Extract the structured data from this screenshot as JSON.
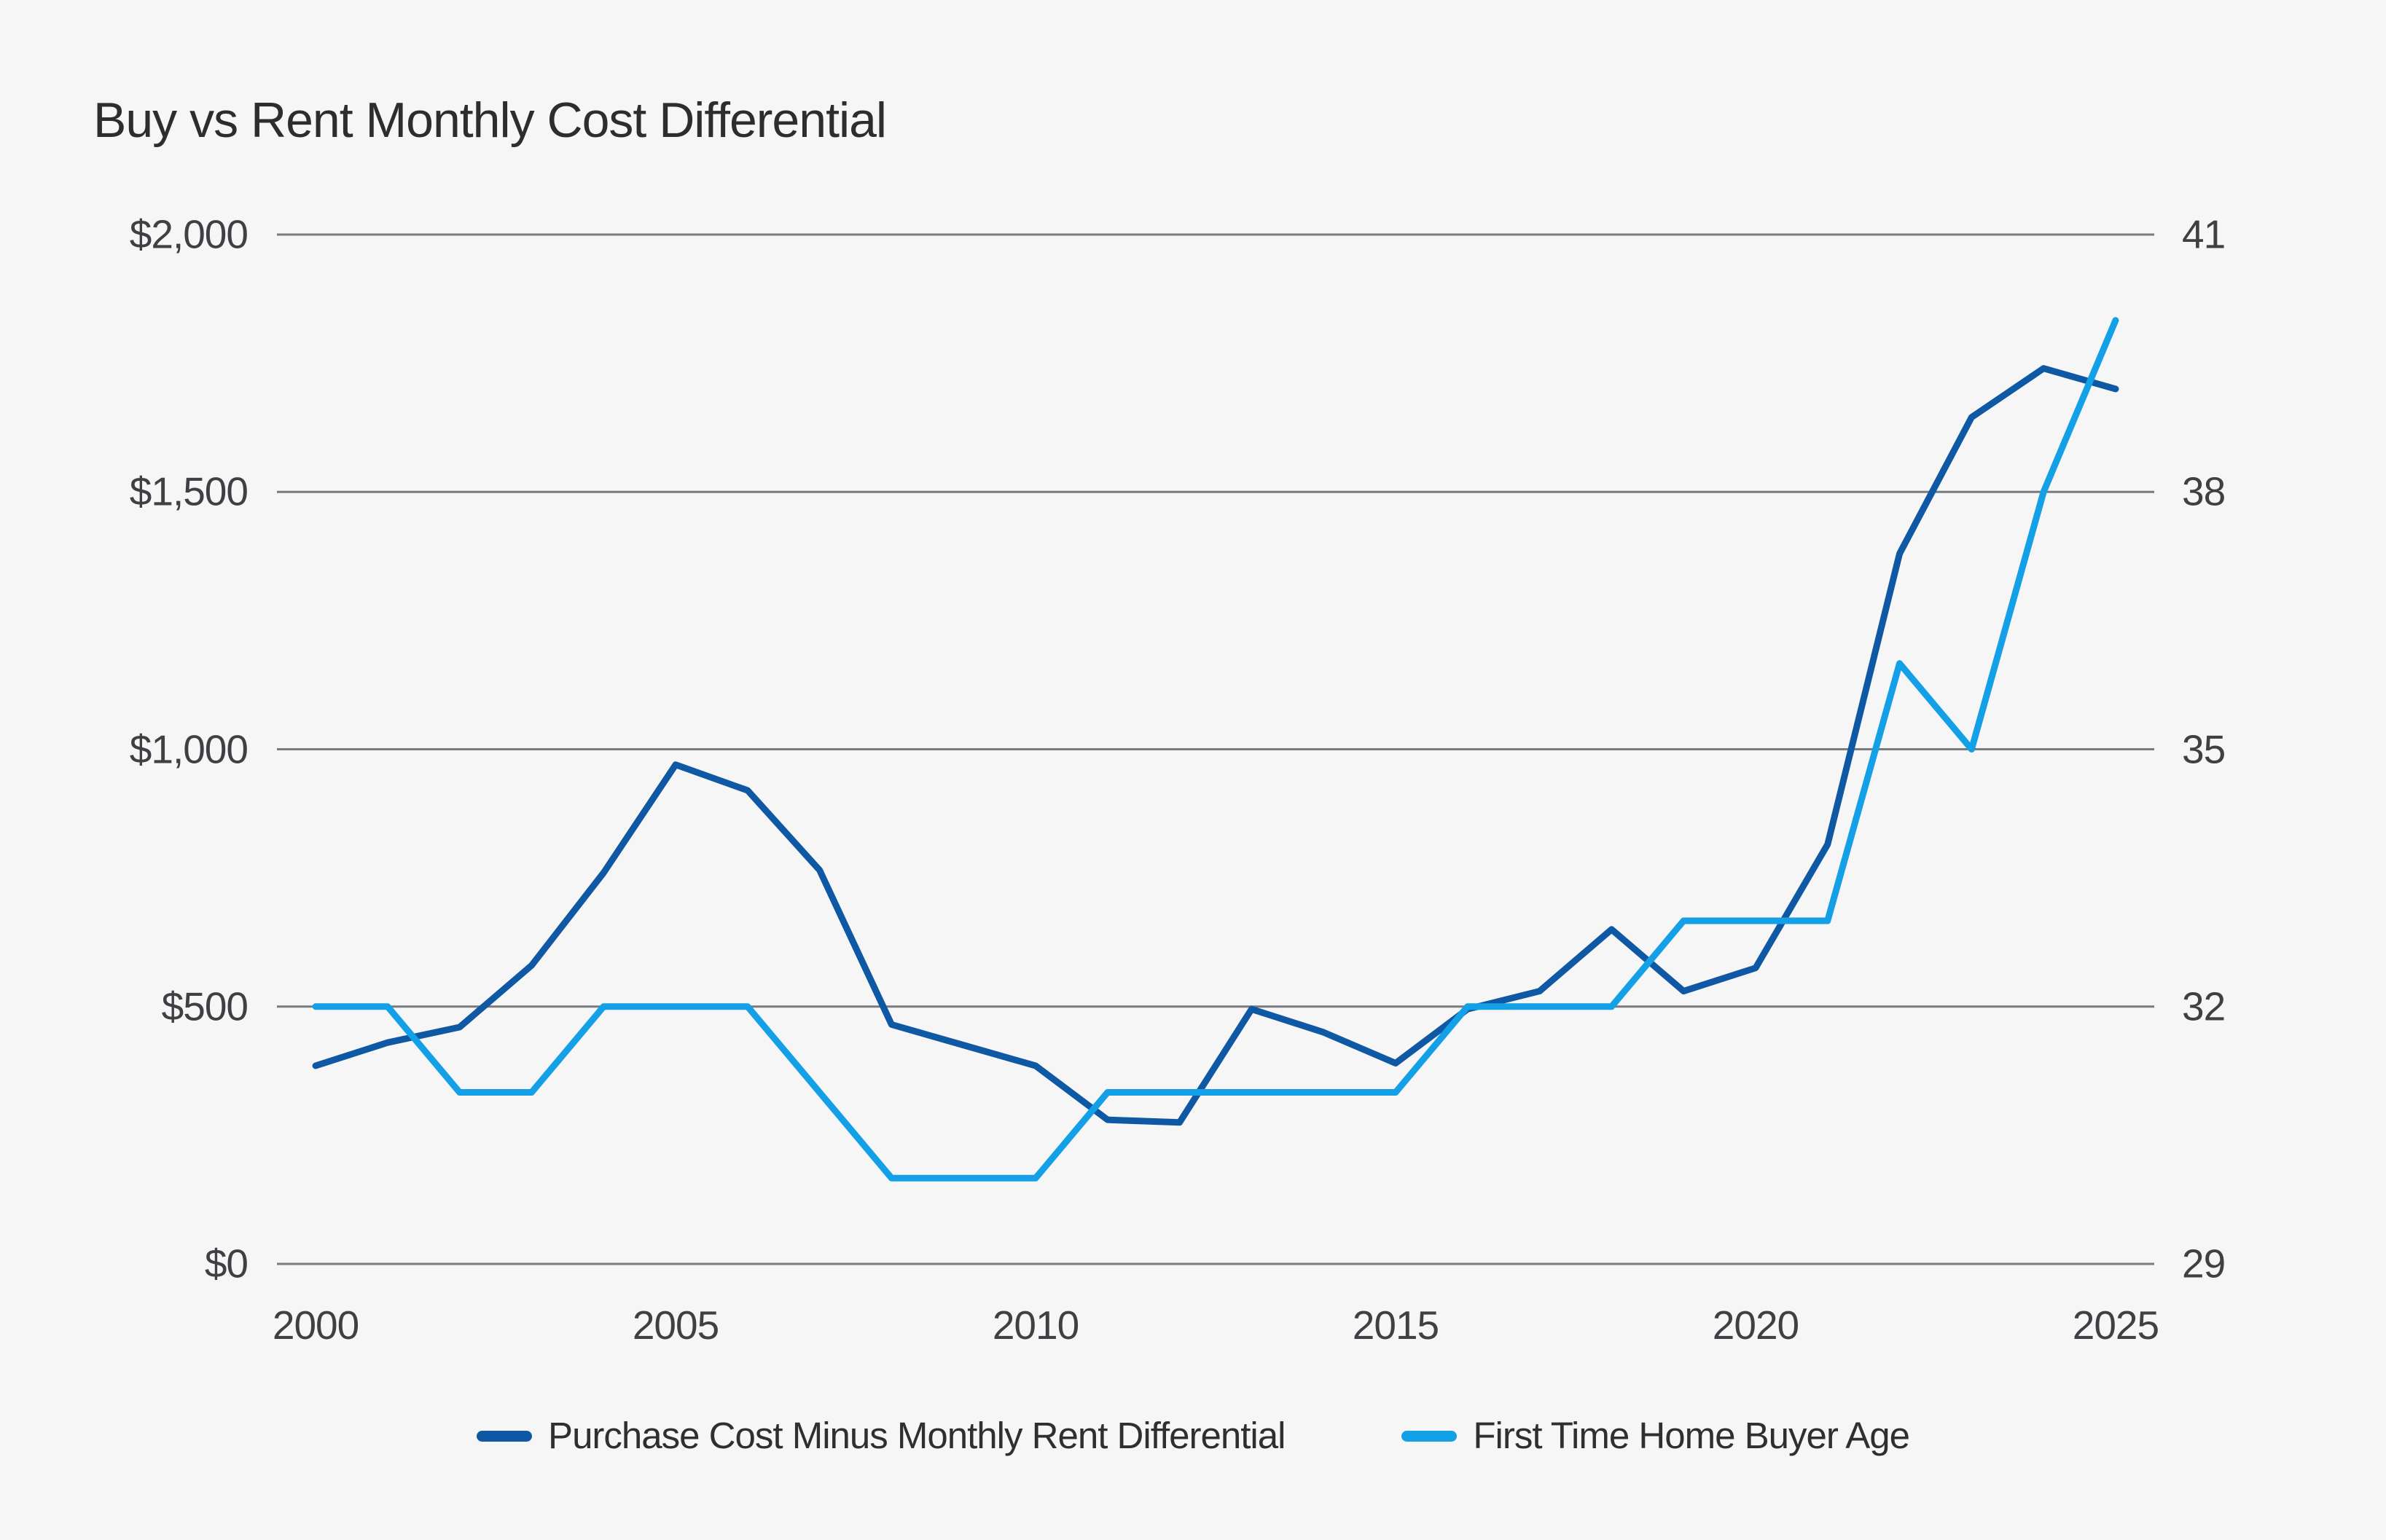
{
  "page": {
    "background": "#f6f6f7"
  },
  "chart_data": {
    "type": "line",
    "title": "Buy vs Rent Monthly Cost Differential",
    "x": [
      2000,
      2001,
      2002,
      2003,
      2004,
      2005,
      2006,
      2007,
      2008,
      2009,
      2010,
      2011,
      2012,
      2013,
      2014,
      2015,
      2016,
      2017,
      2018,
      2019,
      2020,
      2021,
      2022,
      2023,
      2024,
      2025
    ],
    "x_ticks": [
      2000,
      2005,
      2010,
      2015,
      2020,
      2025
    ],
    "series": [
      {
        "name": "Purchase Cost Minus Monthly Rent Differential",
        "axis": "left",
        "color": "#0f58a4",
        "values": [
          385,
          430,
          460,
          580,
          760,
          970,
          920,
          765,
          465,
          425,
          385,
          280,
          275,
          495,
          450,
          390,
          495,
          530,
          650,
          530,
          575,
          815,
          1380,
          1645,
          1740,
          1700
        ]
      },
      {
        "name": "First Time Home Buyer Age",
        "axis": "right",
        "color": "#14a0e6",
        "values": [
          32,
          32,
          31,
          31,
          32,
          32,
          32,
          31,
          30,
          30,
          30,
          31,
          31,
          31,
          31,
          31,
          32,
          32,
          32,
          33,
          33,
          33,
          36,
          35,
          38,
          40
        ]
      }
    ],
    "left_axis": {
      "min": 0,
      "max": 2000,
      "ticks": [
        {
          "value": 2000,
          "label": "$2,000"
        },
        {
          "value": 1500,
          "label": "$1,500"
        },
        {
          "value": 1000,
          "label": "$1,000"
        },
        {
          "value": 500,
          "label": "$500"
        },
        {
          "value": 0,
          "label": "$0"
        }
      ]
    },
    "right_axis": {
      "min": 29,
      "max": 41,
      "ticks": [
        {
          "value": 41,
          "label": "41"
        },
        {
          "value": 38,
          "label": "38"
        },
        {
          "value": 35,
          "label": "35"
        },
        {
          "value": 32,
          "label": "32"
        },
        {
          "value": 29,
          "label": "29"
        }
      ]
    },
    "grid": true,
    "legend_position": "bottom",
    "colors": {
      "grid": "#7a7b7d",
      "background": "#f6f6f7",
      "axis_text": "#3f4043",
      "title_text": "#2c2d2f",
      "legend_text": "#2e2f31"
    }
  }
}
